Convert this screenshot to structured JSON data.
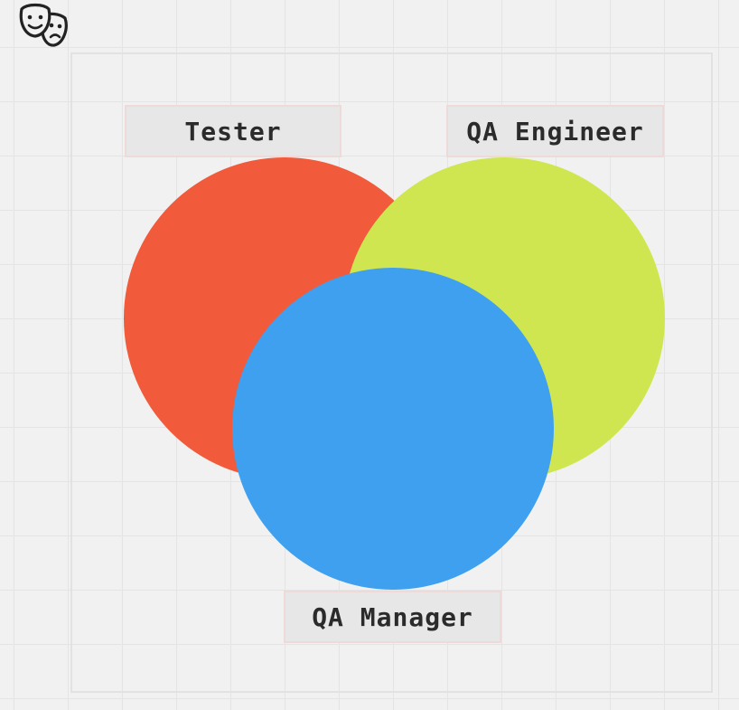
{
  "toolbar": {
    "icon": "theater-masks-icon"
  },
  "diagram": {
    "type": "venn",
    "sets": [
      {
        "id": "tester",
        "label": "Tester",
        "color": "#f15a3a"
      },
      {
        "id": "qa_engineer",
        "label": "QA Engineer",
        "color": "#cfe651"
      },
      {
        "id": "qa_manager",
        "label": "QA Manager",
        "color": "#3ea0ee"
      }
    ]
  }
}
